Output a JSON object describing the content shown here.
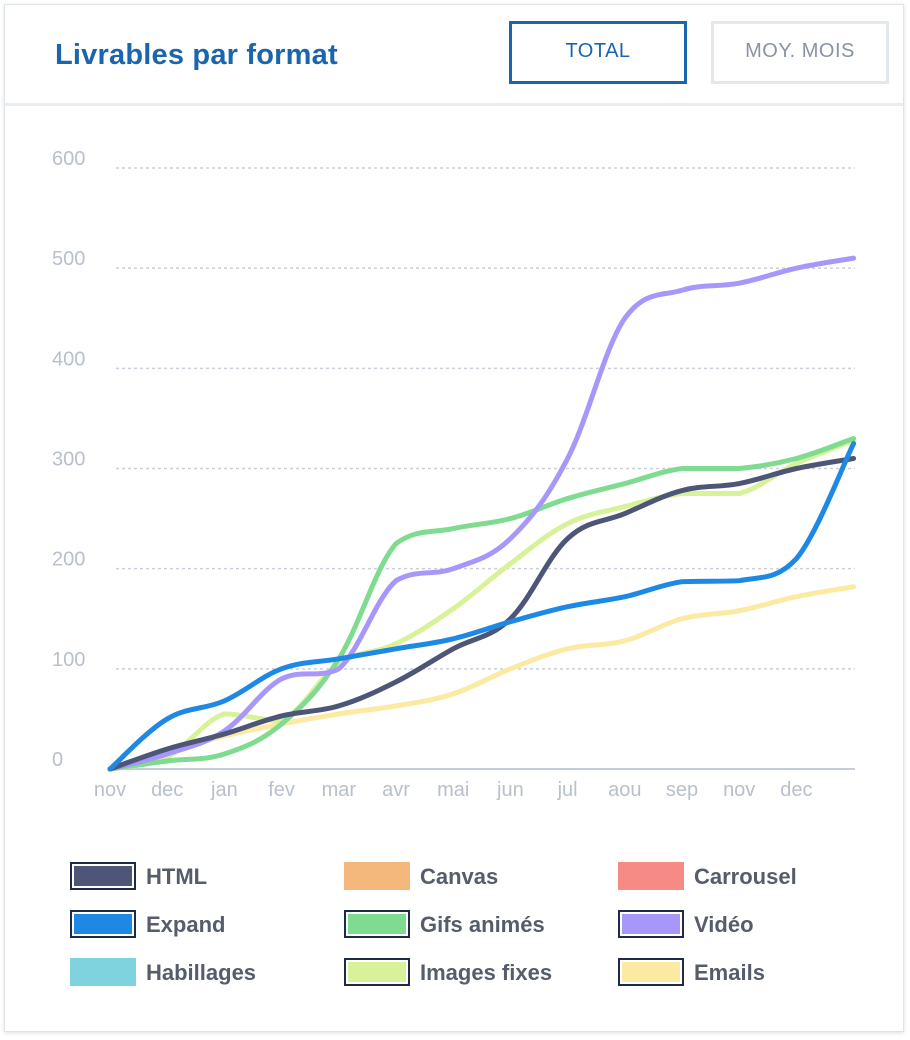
{
  "header": {
    "title": "Livrables par format",
    "btn_total": "TOTAL",
    "btn_moy": "MOY. MOIS"
  },
  "chart_data": {
    "type": "line",
    "x": [
      "nov",
      "dec",
      "jan",
      "fev",
      "mar",
      "avr",
      "mai",
      "jun",
      "jul",
      "aou",
      "sep",
      "nov",
      "dec",
      ""
    ],
    "xticklabels": [
      "nov",
      "dec",
      "jan",
      "fev",
      "mar",
      "avr",
      "mai",
      "jun",
      "jul",
      "aou",
      "sep",
      "nov",
      "dec"
    ],
    "ylim": [
      0,
      600
    ],
    "yticks": [
      0,
      100,
      200,
      300,
      400,
      500,
      600
    ],
    "grid": true,
    "series": [
      {
        "name": "HTML",
        "color": "#4d5676",
        "values": [
          0,
          20,
          35,
          53,
          63,
          87,
          120,
          150,
          230,
          255,
          278,
          285,
          300,
          310
        ]
      },
      {
        "name": "Expand",
        "color": "#1e88e5",
        "values": [
          0,
          50,
          68,
          100,
          110,
          120,
          130,
          147,
          162,
          172,
          187,
          188,
          210,
          325
        ]
      },
      {
        "name": "Gifs animés",
        "color": "#7fdb90",
        "values": [
          0,
          8,
          15,
          45,
          110,
          225,
          240,
          250,
          270,
          285,
          300,
          300,
          310,
          330
        ]
      },
      {
        "name": "Vidéo",
        "color": "#a897fb",
        "values": [
          0,
          15,
          38,
          90,
          100,
          188,
          200,
          230,
          310,
          450,
          478,
          485,
          500,
          510
        ]
      },
      {
        "name": "Images fixes",
        "color": "#d8f29a",
        "values": [
          0,
          12,
          55,
          48,
          105,
          125,
          160,
          205,
          245,
          262,
          275,
          275,
          305,
          328
        ]
      },
      {
        "name": "Emails",
        "color": "#fce9a2",
        "values": [
          0,
          18,
          33,
          45,
          55,
          63,
          75,
          100,
          120,
          128,
          150,
          158,
          172,
          182
        ]
      }
    ]
  },
  "legend": [
    {
      "label": "HTML",
      "color": "#4d5676",
      "active": true
    },
    {
      "label": "Canvas",
      "color": "#f4b87c",
      "active": false
    },
    {
      "label": "Carrousel",
      "color": "#f58b84",
      "active": false
    },
    {
      "label": "Expand",
      "color": "#1e88e5",
      "active": true
    },
    {
      "label": "Gifs animés",
      "color": "#7fdb90",
      "active": true
    },
    {
      "label": "Vidéo",
      "color": "#a897fb",
      "active": true
    },
    {
      "label": "Habillages",
      "color": "#7fd3df",
      "active": false
    },
    {
      "label": "Images fixes",
      "color": "#d8f29a",
      "active": true
    },
    {
      "label": "Emails",
      "color": "#fce9a2",
      "active": true
    }
  ]
}
